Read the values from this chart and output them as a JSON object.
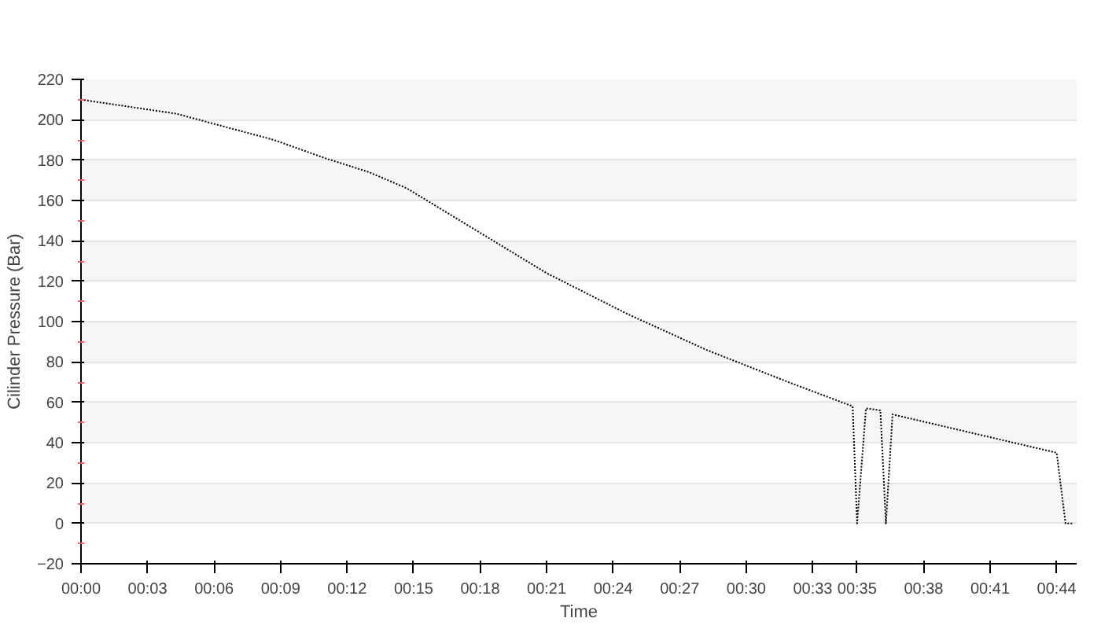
{
  "chart_data": {
    "type": "line",
    "xlabel": "Time",
    "ylabel": "Cilinder Pressure (Bar)",
    "x": [
      0,
      4.3,
      8.7,
      11.0,
      13.0,
      14.7,
      17.4,
      21.0,
      24.6,
      28.2,
      31.9,
      34.8,
      35.0,
      35.4,
      36.05,
      36.3,
      36.6,
      44.0,
      44.4,
      44.7
    ],
    "series": [
      {
        "color": "#000000",
        "values": [
          210,
          203,
          190,
          181,
          174,
          166,
          148,
          124,
          104,
          86,
          70,
          58,
          0,
          57,
          56,
          0,
          54,
          35,
          0,
          0
        ]
      }
    ],
    "xlim": [
      0,
      44.9
    ],
    "ylim": [
      -20,
      220
    ],
    "xticks": [
      {
        "value": 0,
        "label": "00:00"
      },
      {
        "value": 3,
        "label": "00:03"
      },
      {
        "value": 6,
        "label": "00:06"
      },
      {
        "value": 9,
        "label": "00:09"
      },
      {
        "value": 12,
        "label": "00:12"
      },
      {
        "value": 15,
        "label": "00:15"
      },
      {
        "value": 18,
        "label": "00:18"
      },
      {
        "value": 21,
        "label": "00:21"
      },
      {
        "value": 24,
        "label": "00:24"
      },
      {
        "value": 27,
        "label": "00:27"
      },
      {
        "value": 30,
        "label": "00:30"
      },
      {
        "value": 33,
        "label": "00:33"
      },
      {
        "value": 35,
        "label": "00:35"
      },
      {
        "value": 38,
        "label": "00:38"
      },
      {
        "value": 41,
        "label": "00:41"
      },
      {
        "value": 44,
        "label": "00:44"
      }
    ],
    "yticks": [
      -20,
      0,
      20,
      40,
      60,
      80,
      100,
      120,
      140,
      160,
      180,
      200,
      220
    ],
    "grid": "y",
    "line_style": "dotted",
    "marker": "none"
  }
}
